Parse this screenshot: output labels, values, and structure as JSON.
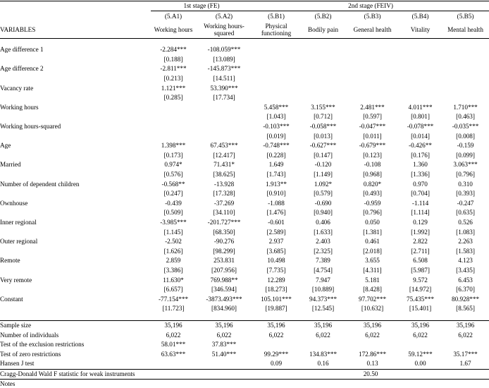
{
  "stages": {
    "first": "1st stage (FE)",
    "second": "2nd stage (FEIV)"
  },
  "col_ids": [
    "(5.A1)",
    "(5.A2)",
    "(5.B1)",
    "(5.B2)",
    "(5.B3)",
    "(5.B4)",
    "(5.B5)"
  ],
  "variables_label": "VARIABLES",
  "col_names": [
    "Working hours",
    "Working hours-squared",
    "Physical functioning",
    "Bodily pain",
    "General health",
    "Vitality",
    "Mental health"
  ],
  "rows": [
    {
      "name": "Age difference 1",
      "coef": [
        "-2.284***",
        "-108.059***",
        "",
        "",
        "",
        "",
        ""
      ],
      "se": [
        "[0.188]",
        "[13.089]",
        "",
        "",
        "",
        "",
        ""
      ]
    },
    {
      "name": "Age difference 2",
      "coef": [
        "-2.811***",
        "-145.873***",
        "",
        "",
        "",
        "",
        ""
      ],
      "se": [
        "[0.213]",
        "[14.511]",
        "",
        "",
        "",
        "",
        ""
      ]
    },
    {
      "name": "Vacancy rate",
      "coef": [
        "1.121***",
        "53.390***",
        "",
        "",
        "",
        "",
        ""
      ],
      "se": [
        "[0.285]",
        "[17.734]",
        "",
        "",
        "",
        "",
        ""
      ]
    },
    {
      "name": "Working hours",
      "coef": [
        "",
        "",
        "5.458***",
        "3.155***",
        "2.481***",
        "4.011***",
        "1.710***"
      ],
      "se": [
        "",
        "",
        "[1.043]",
        "[0.712]",
        "[0.597]",
        "[0.801]",
        "[0.463]"
      ]
    },
    {
      "name": "Working hours-squared",
      "coef": [
        "",
        "",
        "-0.103***",
        "-0.058***",
        "-0.047***",
        "-0.078***",
        "-0.035***"
      ],
      "se": [
        "",
        "",
        "[0.019]",
        "[0.013]",
        "[0.011]",
        "[0.014]",
        "[0.008]"
      ]
    },
    {
      "name": "Age",
      "coef": [
        "1.398***",
        "67.453***",
        "-0.748***",
        "-0.627***",
        "-0.679***",
        "-0.426**",
        "-0.159"
      ],
      "se": [
        "[0.173]",
        "[12.417]",
        "[0.228]",
        "[0.147]",
        "[0.123]",
        "[0.176]",
        "[0.099]"
      ]
    },
    {
      "name": "Married",
      "coef": [
        "0.974*",
        "71.431*",
        "1.649",
        "-0.120",
        "-0.108",
        "1.360",
        "3.063***"
      ],
      "se": [
        "[0.576]",
        "[38.625]",
        "[1.743]",
        "[1.149]",
        "[0.968]",
        "[1.336]",
        "[0.796]"
      ]
    },
    {
      "name": "Number of dependent children",
      "coef": [
        "-0.568**",
        "-13.928",
        "1.913**",
        "1.092*",
        "0.820*",
        "0.970",
        "0.310"
      ],
      "se": [
        "[0.247]",
        "[17.328]",
        "[0.910]",
        "[0.579]",
        "[0.493]",
        "[0.704]",
        "[0.393]"
      ]
    },
    {
      "name": "Ownhouse",
      "coef": [
        "-0.439",
        "-37.269",
        "-1.088",
        "-0.690",
        "-0.959",
        "-1.114",
        "-0.247"
      ],
      "se": [
        "[0.509]",
        "[34.110]",
        "[1.476]",
        "[0.940]",
        "[0.796]",
        "[1.114]",
        "[0.635]"
      ]
    },
    {
      "name": "Inner regional",
      "coef": [
        "-3.985***",
        "-201.727***",
        "-0.601",
        "0.406",
        "0.050",
        "0.129",
        "0.526"
      ],
      "se": [
        "[1.145]",
        "[68.350]",
        "[2.589]",
        "[1.633]",
        "[1.381]",
        "[1.992]",
        "[1.083]"
      ]
    },
    {
      "name": "Outer regional",
      "coef": [
        "-2.502",
        "-90.276",
        "2.937",
        "2.403",
        "0.461",
        "2.822",
        "2.263"
      ],
      "se": [
        "[1.626]",
        "[98.299]",
        "[3.685]",
        "[2.325]",
        "[2.018]",
        "[2.711]",
        "[1.583]"
      ]
    },
    {
      "name": "Remote",
      "coef": [
        "2.859",
        "253.831",
        "10.498",
        "7.389",
        "3.655",
        "6.508",
        "4.123"
      ],
      "se": [
        "[3.386]",
        "[207.956]",
        "[7.735]",
        "[4.754]",
        "[4.311]",
        "[5.987]",
        "[3.435]"
      ]
    },
    {
      "name": "Very remote",
      "coef": [
        "11.630*",
        "769.988**",
        "12.289",
        "7.947",
        "5.181",
        "9.572",
        "6.453"
      ],
      "se": [
        "[6.657]",
        "[346.594]",
        "[18.273]",
        "[10.889]",
        "[8.428]",
        "[14.972]",
        "[6.370]"
      ]
    },
    {
      "name": "Constant",
      "coef": [
        "-77.154***",
        "-3873.493***",
        "105.101***",
        "94.373***",
        "97.702***",
        "75.435***",
        "80.928***"
      ],
      "se": [
        "[11.723]",
        "[834.960]",
        "[19.887]",
        "[12.545]",
        "[10.632]",
        "[15.401]",
        "[8.565]"
      ]
    }
  ],
  "stats": [
    {
      "name": "Sample size",
      "values": [
        "35,196",
        "35,196",
        "35,196",
        "35,196",
        "35,196",
        "35,196",
        "35,196"
      ]
    },
    {
      "name": "Number of individuals",
      "values": [
        "6,022",
        "6,022",
        "6,022",
        "6,022",
        "6,022",
        "6,022",
        "6,022"
      ]
    },
    {
      "name": "Test of the exclusion restrictions",
      "values": [
        "58.01***",
        "37.83***",
        "",
        "",
        "",
        "",
        ""
      ]
    },
    {
      "name": "Test of zero restrictions",
      "values": [
        "63.63***",
        "51.40***",
        "99.29***",
        "134.83***",
        "172.86***",
        "59.12***",
        "35.17***"
      ]
    },
    {
      "name": "Hansen J test",
      "values": [
        "",
        "",
        "0.09",
        "0.16",
        "0.13",
        "0.00",
        "1.67"
      ]
    }
  ],
  "cragg": {
    "name": "Cragg-Donald Wald F statistic for weak instruments",
    "value": "20.50"
  },
  "notes_label": "Notes"
}
